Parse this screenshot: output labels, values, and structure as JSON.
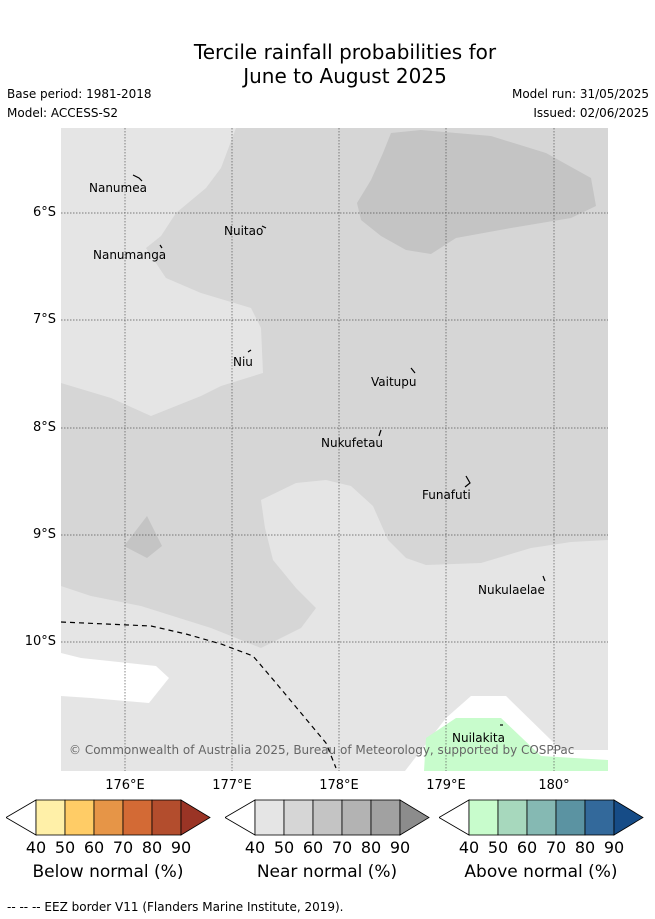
{
  "title": {
    "line1": "Tercile rainfall probabilities for",
    "line2": "June to August 2025"
  },
  "meta": {
    "base_period": "Base period: 1981-2018",
    "model": "Model: ACCESS-S2",
    "model_run": "Model run: 31/05/2025",
    "issued": "Issued: 02/06/2025"
  },
  "axes": {
    "lat_labels": [
      "6°S",
      "7°S",
      "8°S",
      "9°S",
      "10°S"
    ],
    "lon_labels": [
      "176°E",
      "177°E",
      "178°E",
      "179°E",
      "180°"
    ]
  },
  "places": [
    "Nanumea",
    "Nuitao",
    "Nanumanga",
    "Niu",
    "Vaitupu",
    "Nukufetau",
    "Funafuti",
    "Nukulaelae",
    "Nuilakita"
  ],
  "copyright": "© Commonwealth of Australia 2025, Bureau of Meteorology, supported by COSPPac",
  "colorbars": [
    {
      "label": "Below normal (%)",
      "ticks": [
        "40",
        "50",
        "60",
        "70",
        "80",
        "90"
      ],
      "colors": [
        "#ffffff",
        "#fff0a8",
        "#ffcc66",
        "#e69547",
        "#d36a35",
        "#b34d2d",
        "#9a3425"
      ]
    },
    {
      "label": "Near normal (%)",
      "ticks": [
        "40",
        "50",
        "60",
        "70",
        "80",
        "90"
      ],
      "colors": [
        "#ffffff",
        "#e5e5e5",
        "#d6d6d6",
        "#c4c4c4",
        "#b3b3b3",
        "#a1a1a1",
        "#8c8c8c"
      ]
    },
    {
      "label": "Above normal (%)",
      "ticks": [
        "40",
        "50",
        "60",
        "70",
        "80",
        "90"
      ],
      "colors": [
        "#ffffff",
        "#c8fccc",
        "#a7d8bd",
        "#85b9b3",
        "#5b93a2",
        "#33699b",
        "#164c87"
      ]
    }
  ],
  "footnote": "-- -- -- EEZ border V11 (Flanders Marine Institute, 2019).",
  "colors": {
    "near_40_50": "#e5e5e5",
    "near_50_60": "#d6d6d6",
    "near_60_70": "#c4c4c4",
    "above_40_50": "#c8fccc",
    "grid": "#555555"
  }
}
